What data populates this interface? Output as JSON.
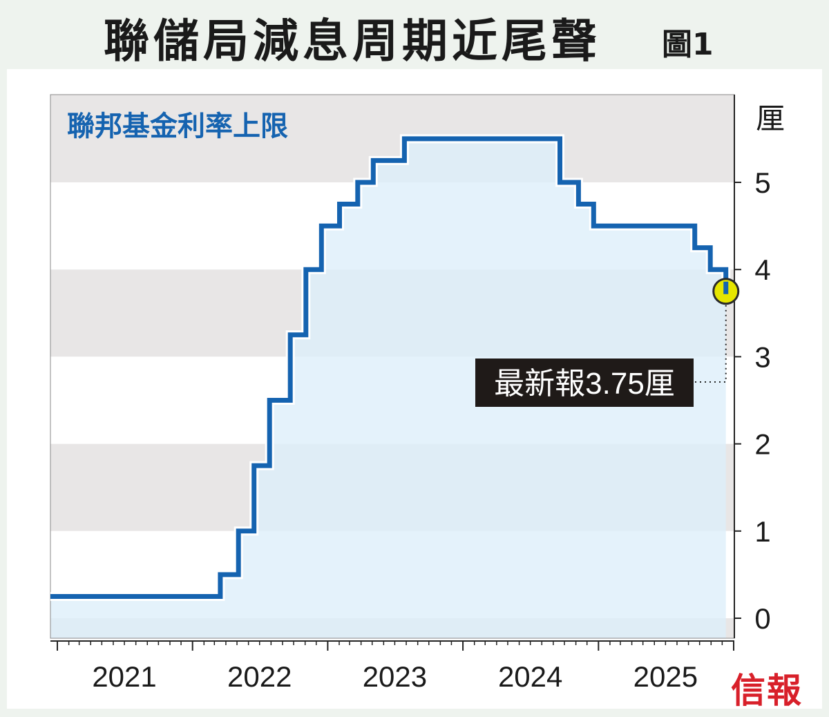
{
  "title": "聯儲局減息周期近尾聲",
  "figure_label": "圖1",
  "logo_text": "信報",
  "colors": {
    "line": "#1563b0",
    "fill": "#dceefa",
    "band_gray": "#e8e6e6",
    "band_white": "#ffffff",
    "highlight": "#e6e600",
    "annotation_bg": "#1f1a18",
    "series_label": "#1563b0"
  },
  "chart_data": {
    "type": "line",
    "step": true,
    "series": [
      {
        "name": "聯邦基金利率上限",
        "points": [
          [
            "2021-01-01",
            0.25
          ],
          [
            "2022-03-17",
            0.25
          ],
          [
            "2022-03-17",
            0.5
          ],
          [
            "2022-05-05",
            0.5
          ],
          [
            "2022-05-05",
            1.0
          ],
          [
            "2022-06-16",
            1.0
          ],
          [
            "2022-06-16",
            1.75
          ],
          [
            "2022-07-28",
            1.75
          ],
          [
            "2022-07-28",
            2.5
          ],
          [
            "2022-09-22",
            2.5
          ],
          [
            "2022-09-22",
            3.25
          ],
          [
            "2022-11-03",
            3.25
          ],
          [
            "2022-11-03",
            4.0
          ],
          [
            "2022-12-15",
            4.0
          ],
          [
            "2022-12-15",
            4.5
          ],
          [
            "2023-02-02",
            4.5
          ],
          [
            "2023-02-02",
            4.75
          ],
          [
            "2023-03-23",
            4.75
          ],
          [
            "2023-03-23",
            5.0
          ],
          [
            "2023-05-04",
            5.0
          ],
          [
            "2023-05-04",
            5.25
          ],
          [
            "2023-07-27",
            5.25
          ],
          [
            "2023-07-27",
            5.5
          ],
          [
            "2024-09-19",
            5.5
          ],
          [
            "2024-09-19",
            5.0
          ],
          [
            "2024-11-08",
            5.0
          ],
          [
            "2024-11-08",
            4.75
          ],
          [
            "2024-12-19",
            4.75
          ],
          [
            "2024-12-19",
            4.5
          ],
          [
            "2025-09-18",
            4.5
          ],
          [
            "2025-09-18",
            4.25
          ],
          [
            "2025-10-30",
            4.25
          ],
          [
            "2025-10-30",
            4.0
          ],
          [
            "2025-12-11",
            4.0
          ],
          [
            "2025-12-11",
            3.75
          ]
        ]
      }
    ],
    "series_label": "聯邦基金利率上限",
    "y_unit": "厘",
    "y_ticks": [
      "0",
      "1",
      "2",
      "3",
      "4",
      "5"
    ],
    "ylim": [
      -0.2,
      6.0
    ],
    "x_ticks": [
      "2021",
      "2022",
      "2023",
      "2024",
      "2025"
    ],
    "xlim": [
      "2021-01-01",
      "2026-01-01"
    ],
    "grid": "alternating horizontal bands",
    "annotation": {
      "text": "最新報3.75厘",
      "x": "2025-12-11",
      "y": 3.75
    }
  }
}
